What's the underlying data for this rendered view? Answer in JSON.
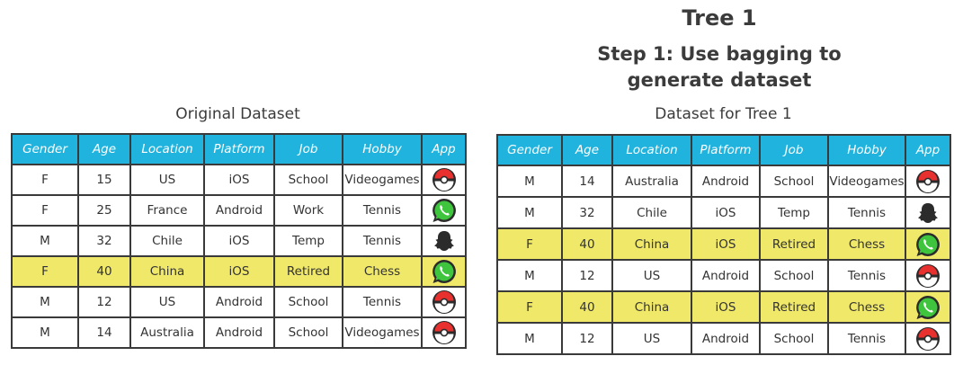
{
  "title": "Tree 1",
  "subtitle_line1": "Step 1: Use bagging to",
  "subtitle_line2": "generate dataset",
  "colors": {
    "header": "#1fb3de",
    "highlight": "#f0e868",
    "pokemon_red": "#e8312f",
    "whatsapp_green": "#3ec53d"
  },
  "original": {
    "caption": "Original Dataset",
    "headers": [
      "Gender",
      "Age",
      "Location",
      "Platform",
      "Job",
      "Hobby",
      "App"
    ],
    "rows": [
      {
        "gender": "F",
        "age": "15",
        "location": "US",
        "platform": "iOS",
        "job": "School",
        "hobby": "Videogames",
        "app": "pokemon-go-icon",
        "highlight": false
      },
      {
        "gender": "F",
        "age": "25",
        "location": "France",
        "platform": "Android",
        "job": "Work",
        "hobby": "Tennis",
        "app": "whatsapp-icon",
        "highlight": false
      },
      {
        "gender": "M",
        "age": "32",
        "location": "Chile",
        "platform": "iOS",
        "job": "Temp",
        "hobby": "Tennis",
        "app": "snapchat-ghost-icon",
        "highlight": false
      },
      {
        "gender": "F",
        "age": "40",
        "location": "China",
        "platform": "iOS",
        "job": "Retired",
        "hobby": "Chess",
        "app": "whatsapp-icon",
        "highlight": true
      },
      {
        "gender": "M",
        "age": "12",
        "location": "US",
        "platform": "Android",
        "job": "School",
        "hobby": "Tennis",
        "app": "pokemon-go-icon",
        "highlight": false
      },
      {
        "gender": "M",
        "age": "14",
        "location": "Australia",
        "platform": "Android",
        "job": "School",
        "hobby": "Videogames",
        "app": "pokemon-go-icon",
        "highlight": false
      }
    ]
  },
  "tree1": {
    "caption": "Dataset for Tree 1",
    "headers": [
      "Gender",
      "Age",
      "Location",
      "Platform",
      "Job",
      "Hobby",
      "App"
    ],
    "rows": [
      {
        "gender": "M",
        "age": "14",
        "location": "Australia",
        "platform": "Android",
        "job": "School",
        "hobby": "Videogames",
        "app": "pokemon-go-icon",
        "highlight": false
      },
      {
        "gender": "M",
        "age": "32",
        "location": "Chile",
        "platform": "iOS",
        "job": "Temp",
        "hobby": "Tennis",
        "app": "snapchat-ghost-icon",
        "highlight": false
      },
      {
        "gender": "F",
        "age": "40",
        "location": "China",
        "platform": "iOS",
        "job": "Retired",
        "hobby": "Chess",
        "app": "whatsapp-icon",
        "highlight": true
      },
      {
        "gender": "M",
        "age": "12",
        "location": "US",
        "platform": "Android",
        "job": "School",
        "hobby": "Tennis",
        "app": "pokemon-go-icon",
        "highlight": false
      },
      {
        "gender": "F",
        "age": "40",
        "location": "China",
        "platform": "iOS",
        "job": "Retired",
        "hobby": "Chess",
        "app": "whatsapp-icon",
        "highlight": true
      },
      {
        "gender": "M",
        "age": "12",
        "location": "US",
        "platform": "Android",
        "job": "School",
        "hobby": "Tennis",
        "app": "pokemon-go-icon",
        "highlight": false
      }
    ]
  }
}
